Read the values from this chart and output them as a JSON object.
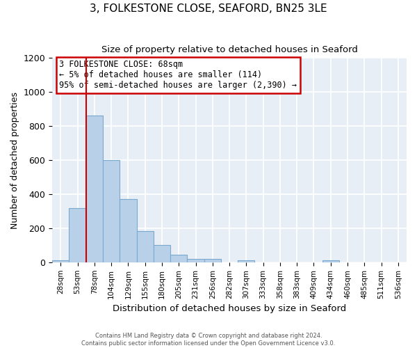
{
  "title": "3, FOLKESTONE CLOSE, SEAFORD, BN25 3LE",
  "subtitle": "Size of property relative to detached houses in Seaford",
  "xlabel": "Distribution of detached houses by size in Seaford",
  "ylabel": "Number of detached properties",
  "bar_labels": [
    "28sqm",
    "53sqm",
    "78sqm",
    "104sqm",
    "129sqm",
    "155sqm",
    "180sqm",
    "205sqm",
    "231sqm",
    "256sqm",
    "282sqm",
    "307sqm",
    "333sqm",
    "358sqm",
    "383sqm",
    "409sqm",
    "434sqm",
    "460sqm",
    "485sqm",
    "511sqm",
    "536sqm"
  ],
  "bar_values": [
    10,
    320,
    860,
    600,
    370,
    185,
    100,
    45,
    20,
    20,
    0,
    10,
    0,
    0,
    0,
    0,
    10,
    0,
    0,
    0,
    0
  ],
  "bar_color": "#b8d0e8",
  "bar_edge_color": "#7aaacf",
  "ylim": [
    0,
    1200
  ],
  "yticks": [
    0,
    200,
    400,
    600,
    800,
    1000,
    1200
  ],
  "property_line_color": "#cc0000",
  "annotation_line1": "3 FOLKESTONE CLOSE: 68sqm",
  "annotation_line2": "← 5% of detached houses are smaller (114)",
  "annotation_line3": "95% of semi-detached houses are larger (2,390) →",
  "annotation_box_color": "#cc0000",
  "footer_line1": "Contains HM Land Registry data © Crown copyright and database right 2024.",
  "footer_line2": "Contains public sector information licensed under the Open Government Licence v3.0.",
  "num_bins": 21,
  "property_bin_index": 2
}
